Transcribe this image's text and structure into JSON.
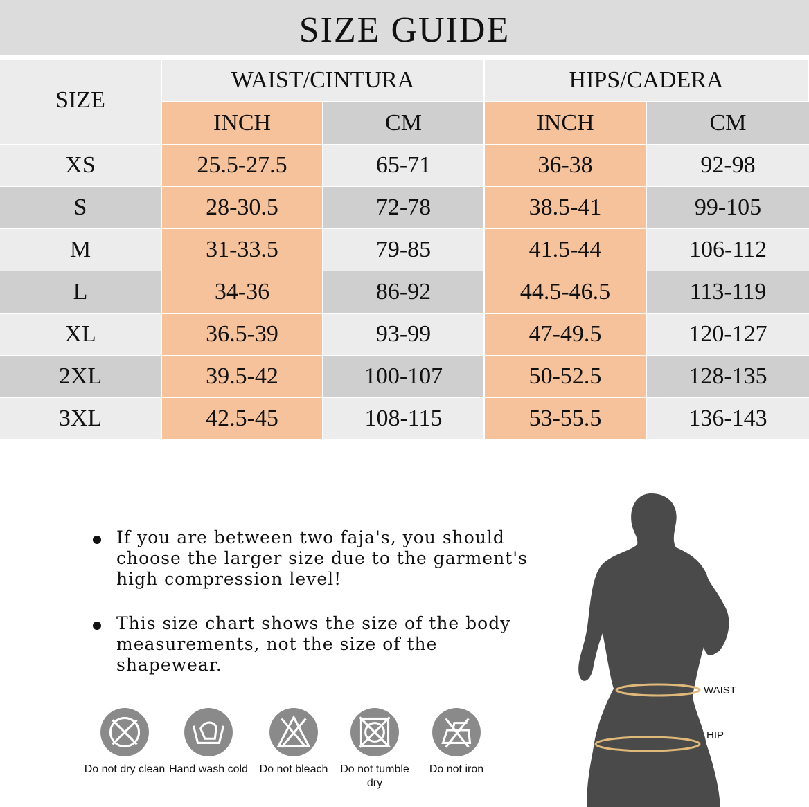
{
  "title": "SIZE GUIDE",
  "table": {
    "size_header": "SIZE",
    "groups": [
      "WAIST/CINTURA",
      "HIPS/CADERA"
    ],
    "units": [
      "INCH",
      "CM",
      "INCH",
      "CM"
    ],
    "rows": [
      [
        "XS",
        "25.5-27.5",
        "65-71",
        "36-38",
        "92-98"
      ],
      [
        "S",
        "28-30.5",
        "72-78",
        "38.5-41",
        "99-105"
      ],
      [
        "M",
        "31-33.5",
        "79-85",
        "41.5-44",
        "106-112"
      ],
      [
        "L",
        "34-36",
        "86-92",
        "44.5-46.5",
        "113-119"
      ],
      [
        "XL",
        "36.5-39",
        "93-99",
        "47-49.5",
        "120-127"
      ],
      [
        "2XL",
        "39.5-42",
        "100-107",
        "50-52.5",
        "128-135"
      ],
      [
        "3XL",
        "42.5-45",
        "108-115",
        "53-55.5",
        "136-143"
      ]
    ]
  },
  "notes": [
    "If you are between two faja's, you should choose the larger size due to the garment's high compression level!",
    "This size chart shows the size of the body measurements, not the size of the shapewear."
  ],
  "care": [
    {
      "icon": "do-not-dry-clean-icon",
      "label": "Do not dry clean"
    },
    {
      "icon": "hand-wash-cold-icon",
      "label": "Hand wash cold"
    },
    {
      "icon": "do-not-bleach-icon",
      "label": "Do not bleach"
    },
    {
      "icon": "do-not-tumble-dry-icon",
      "label": "Do not tumble dry"
    },
    {
      "icon": "do-not-iron-icon",
      "label": "Do not iron"
    }
  ],
  "figure": {
    "waist_label": "WAIST",
    "hip_label": "HIP"
  },
  "colors": {
    "orange": "#f5c29c",
    "light": "#ececec",
    "dark": "#cfcfcf",
    "title_bg": "#dcdcdc",
    "icon": "#8a8a8a"
  }
}
